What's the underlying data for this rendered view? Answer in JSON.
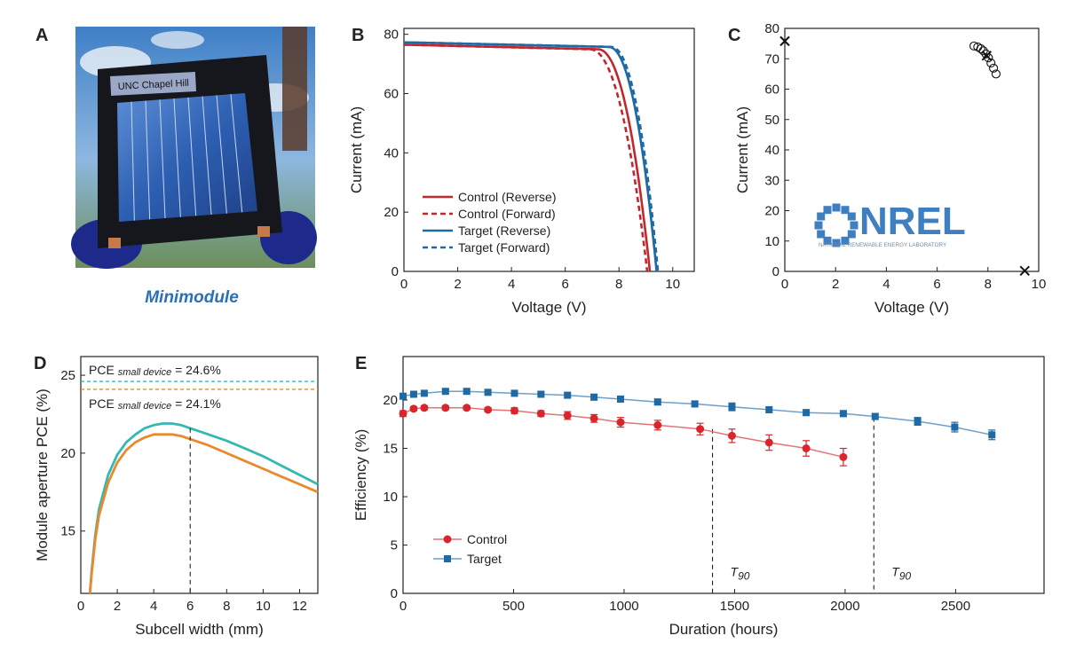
{
  "panels": {
    "a": {
      "letter": "A"
    },
    "b": {
      "letter": "B"
    },
    "c": {
      "letter": "C"
    },
    "d": {
      "letter": "D"
    },
    "e": {
      "letter": "E"
    }
  },
  "photo": {
    "module_label": "UNC Chapel Hill",
    "caption": "Minimodule",
    "caption_color": "#2a6fb7"
  },
  "nrel_logo": {
    "text": "NREL",
    "subtext": "NATIONAL RENEWABLE ENERGY LABORATORY",
    "color": "#3d7fc1"
  },
  "colors": {
    "control": "#c0282d",
    "target": "#1f6aa5",
    "teal": "#35b8b4",
    "orange": "#e8892b"
  },
  "chart_data": [
    {
      "id": "B",
      "type": "line",
      "xlabel": "Voltage (V)",
      "ylabel": "Current (mA)",
      "xlim": [
        0,
        10.8
      ],
      "ylim": [
        0,
        82
      ],
      "xticks": [
        0,
        2,
        4,
        6,
        8,
        10
      ],
      "yticks": [
        0,
        20,
        40,
        60,
        80
      ],
      "legend_position": "lower-left",
      "series": [
        {
          "name": "Control (Reverse)",
          "style": "solid",
          "color": "#c0282d",
          "isc": 76.5,
          "voc": 9.15,
          "knee": 7.2,
          "sharp": 0.55
        },
        {
          "name": "Control (Forward)",
          "style": "dashed",
          "color": "#c0282d",
          "isc": 76.5,
          "voc": 9.05,
          "knee": 6.9,
          "sharp": 0.6
        },
        {
          "name": "Target (Reverse)",
          "style": "solid",
          "color": "#1f6aa5",
          "isc": 77.3,
          "voc": 9.4,
          "knee": 7.6,
          "sharp": 0.45
        },
        {
          "name": "Target (Forward)",
          "style": "dashed",
          "color": "#1f6aa5",
          "isc": 77.3,
          "voc": 9.45,
          "knee": 7.7,
          "sharp": 0.45
        }
      ]
    },
    {
      "id": "C",
      "type": "scatter",
      "xlabel": "Voltage (V)",
      "ylabel": "Current (mA)",
      "xlim": [
        0,
        10
      ],
      "ylim": [
        0,
        80
      ],
      "xticks": [
        0,
        2,
        4,
        6,
        8,
        10
      ],
      "yticks": [
        0,
        10,
        20,
        30,
        40,
        50,
        60,
        70,
        80
      ],
      "series": [
        {
          "marker": "circle",
          "x": [
            7.45,
            7.6,
            7.72,
            7.82,
            7.92,
            8.02,
            8.12,
            8.22,
            8.32
          ],
          "y": [
            74.2,
            73.9,
            73.3,
            72.6,
            71.6,
            70.3,
            68.6,
            66.9,
            65.0
          ]
        },
        {
          "marker": "cross",
          "x": [
            0.0,
            7.95,
            9.45
          ],
          "y": [
            75.8,
            71.0,
            0.2
          ]
        }
      ]
    },
    {
      "id": "D",
      "type": "line",
      "xlabel": "Subcell width (mm)",
      "ylabel": "Module aperture PCE (%)",
      "xlim": [
        0,
        13
      ],
      "ylim": [
        11,
        26.2
      ],
      "xticks": [
        0,
        2,
        4,
        6,
        8,
        10,
        12
      ],
      "yticks": [
        15,
        20,
        25
      ],
      "vline": 6,
      "hlines": [
        {
          "y": 24.6,
          "color": "#35b8b4",
          "label_prefix": "PCE",
          "label_sub": "small device",
          "label_value": "= 24.6%"
        },
        {
          "y": 24.1,
          "color": "#e8892b",
          "label_prefix": "PCE",
          "label_sub": "small device",
          "label_value": "= 24.1%"
        }
      ],
      "series": [
        {
          "color": "#35b8b4",
          "x": [
            0.5,
            0.6,
            0.8,
            1.0,
            1.5,
            2.0,
            2.5,
            3.0,
            3.5,
            4.0,
            4.5,
            5.0,
            5.5,
            6.0,
            7.0,
            8.0,
            9.0,
            10.0,
            11.0,
            12.0,
            13.0
          ],
          "y": [
            10.8,
            12.5,
            14.8,
            16.4,
            18.6,
            19.9,
            20.7,
            21.2,
            21.6,
            21.8,
            21.9,
            21.9,
            21.8,
            21.6,
            21.2,
            20.8,
            20.3,
            19.8,
            19.2,
            18.6,
            18.0
          ]
        },
        {
          "color": "#e8892b",
          "x": [
            0.5,
            0.6,
            0.8,
            1.0,
            1.5,
            2.0,
            2.5,
            3.0,
            3.5,
            4.0,
            4.5,
            5.0,
            5.5,
            6.0,
            7.0,
            8.0,
            9.0,
            10.0,
            11.0,
            12.0,
            13.0
          ],
          "y": [
            10.8,
            12.3,
            14.5,
            16.0,
            18.1,
            19.4,
            20.2,
            20.7,
            21.0,
            21.2,
            21.2,
            21.2,
            21.1,
            20.9,
            20.5,
            20.0,
            19.5,
            19.0,
            18.5,
            18.0,
            17.5
          ]
        }
      ]
    },
    {
      "id": "E",
      "type": "line",
      "xlabel": "Duration (hours)",
      "ylabel": "Efficiency (%)",
      "xlim": [
        0,
        2900
      ],
      "ylim": [
        0,
        24.5
      ],
      "xticks": [
        0,
        500,
        1000,
        1500,
        2000,
        2500
      ],
      "yticks": [
        0,
        5,
        10,
        15,
        20
      ],
      "legend_position": "lower-left",
      "t90": [
        {
          "x": 1400,
          "label": "T",
          "sub": "90"
        },
        {
          "x": 2130,
          "label": "T",
          "sub": "90"
        }
      ],
      "series": [
        {
          "name": "Control",
          "marker": "circle",
          "color": "#d9262c",
          "line_color": "#e27578",
          "x": [
            0,
            48,
            96,
            192,
            288,
            384,
            504,
            624,
            744,
            864,
            984,
            1152,
            1344,
            1488,
            1656,
            1824,
            1992
          ],
          "y": [
            18.6,
            19.1,
            19.2,
            19.2,
            19.2,
            19.0,
            18.9,
            18.6,
            18.4,
            18.1,
            17.7,
            17.4,
            17.0,
            16.3,
            15.6,
            15.0,
            14.1
          ],
          "err": [
            0.3,
            0.2,
            0.2,
            0.2,
            0.2,
            0.2,
            0.3,
            0.3,
            0.4,
            0.4,
            0.5,
            0.5,
            0.6,
            0.7,
            0.8,
            0.8,
            0.9
          ]
        },
        {
          "name": "Target",
          "marker": "square",
          "color": "#1f6aa5",
          "line_color": "#6f9fc9",
          "x": [
            0,
            48,
            96,
            192,
            288,
            384,
            504,
            624,
            744,
            864,
            984,
            1152,
            1320,
            1488,
            1656,
            1824,
            1992,
            2136,
            2328,
            2496,
            2664
          ],
          "y": [
            20.4,
            20.6,
            20.7,
            20.9,
            20.9,
            20.8,
            20.7,
            20.6,
            20.5,
            20.3,
            20.1,
            19.8,
            19.6,
            19.3,
            19.0,
            18.7,
            18.6,
            18.3,
            17.8,
            17.2,
            16.4
          ],
          "err": [
            0.2,
            0.2,
            0.2,
            0.2,
            0.2,
            0.2,
            0.2,
            0.2,
            0.2,
            0.3,
            0.3,
            0.3,
            0.3,
            0.4,
            0.3,
            0.3,
            0.3,
            0.3,
            0.4,
            0.5,
            0.5
          ]
        }
      ]
    }
  ]
}
